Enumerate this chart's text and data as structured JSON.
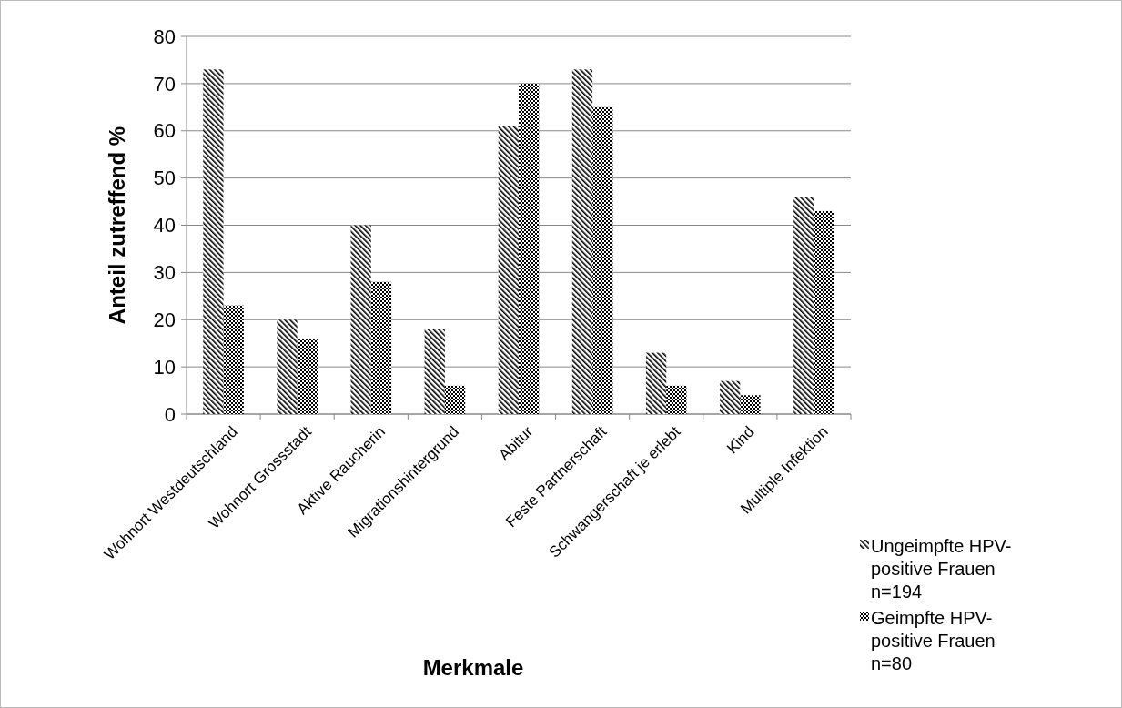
{
  "chart_data": {
    "type": "bar",
    "xlabel": "Merkmale",
    "ylabel": "Anteil zutreffend %",
    "categories": [
      "Wohnort Westdeutschland",
      "Wohnort Grossstadt",
      "Aktive Raucherin",
      "Migrationshintergrund",
      "Abitur",
      "Feste Partnerschaft",
      "Schwangerschaft je erlebt",
      "Kind",
      "Multiple Infektion"
    ],
    "series": [
      {
        "name": "Ungeimpfte HPV-positive Frauen n=194",
        "color": "#000000",
        "values": [
          73,
          20,
          40,
          18,
          61,
          73,
          13,
          7,
          46
        ]
      },
      {
        "name": "Geimpfte HPV-positive Frauen n=80",
        "color": "#000000",
        "values": [
          23,
          16,
          28,
          6,
          70,
          65,
          6,
          4,
          43
        ]
      }
    ],
    "ylim": [
      0,
      80
    ],
    "yticks": [
      0,
      10,
      20,
      30,
      40,
      50,
      60,
      70,
      80
    ],
    "grid": "y",
    "legend": "bottom right"
  }
}
